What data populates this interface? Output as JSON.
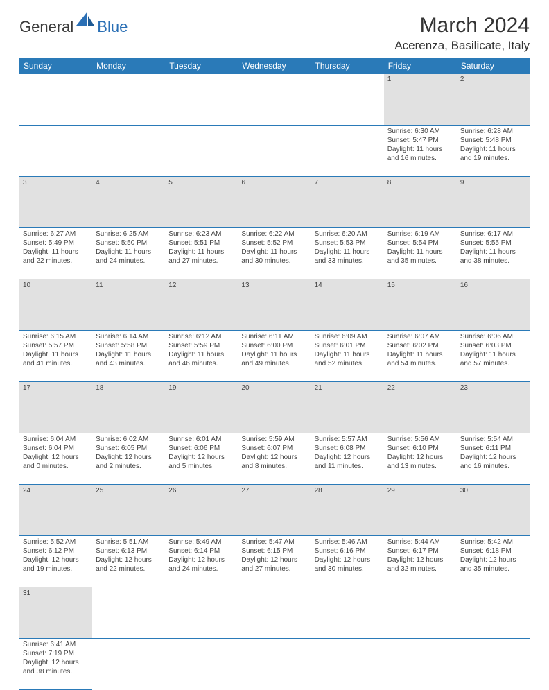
{
  "logo": {
    "general": "General",
    "blue": "Blue"
  },
  "title": "March 2024",
  "location": "Acerenza, Basilicate, Italy",
  "colors": {
    "header_bg": "#2a7ab8",
    "header_fg": "#ffffff",
    "daynum_bg": "#e1e1e1",
    "border": "#2a7ab8",
    "logo_blue": "#2a6fb5",
    "text": "#333333"
  },
  "weekdays": [
    "Sunday",
    "Monday",
    "Tuesday",
    "Wednesday",
    "Thursday",
    "Friday",
    "Saturday"
  ],
  "weeks": [
    [
      null,
      null,
      null,
      null,
      null,
      {
        "n": "1",
        "sr": "Sunrise: 6:30 AM",
        "ss": "Sunset: 5:47 PM",
        "d1": "Daylight: 11 hours",
        "d2": "and 16 minutes."
      },
      {
        "n": "2",
        "sr": "Sunrise: 6:28 AM",
        "ss": "Sunset: 5:48 PM",
        "d1": "Daylight: 11 hours",
        "d2": "and 19 minutes."
      }
    ],
    [
      {
        "n": "3",
        "sr": "Sunrise: 6:27 AM",
        "ss": "Sunset: 5:49 PM",
        "d1": "Daylight: 11 hours",
        "d2": "and 22 minutes."
      },
      {
        "n": "4",
        "sr": "Sunrise: 6:25 AM",
        "ss": "Sunset: 5:50 PM",
        "d1": "Daylight: 11 hours",
        "d2": "and 24 minutes."
      },
      {
        "n": "5",
        "sr": "Sunrise: 6:23 AM",
        "ss": "Sunset: 5:51 PM",
        "d1": "Daylight: 11 hours",
        "d2": "and 27 minutes."
      },
      {
        "n": "6",
        "sr": "Sunrise: 6:22 AM",
        "ss": "Sunset: 5:52 PM",
        "d1": "Daylight: 11 hours",
        "d2": "and 30 minutes."
      },
      {
        "n": "7",
        "sr": "Sunrise: 6:20 AM",
        "ss": "Sunset: 5:53 PM",
        "d1": "Daylight: 11 hours",
        "d2": "and 33 minutes."
      },
      {
        "n": "8",
        "sr": "Sunrise: 6:19 AM",
        "ss": "Sunset: 5:54 PM",
        "d1": "Daylight: 11 hours",
        "d2": "and 35 minutes."
      },
      {
        "n": "9",
        "sr": "Sunrise: 6:17 AM",
        "ss": "Sunset: 5:55 PM",
        "d1": "Daylight: 11 hours",
        "d2": "and 38 minutes."
      }
    ],
    [
      {
        "n": "10",
        "sr": "Sunrise: 6:15 AM",
        "ss": "Sunset: 5:57 PM",
        "d1": "Daylight: 11 hours",
        "d2": "and 41 minutes."
      },
      {
        "n": "11",
        "sr": "Sunrise: 6:14 AM",
        "ss": "Sunset: 5:58 PM",
        "d1": "Daylight: 11 hours",
        "d2": "and 43 minutes."
      },
      {
        "n": "12",
        "sr": "Sunrise: 6:12 AM",
        "ss": "Sunset: 5:59 PM",
        "d1": "Daylight: 11 hours",
        "d2": "and 46 minutes."
      },
      {
        "n": "13",
        "sr": "Sunrise: 6:11 AM",
        "ss": "Sunset: 6:00 PM",
        "d1": "Daylight: 11 hours",
        "d2": "and 49 minutes."
      },
      {
        "n": "14",
        "sr": "Sunrise: 6:09 AM",
        "ss": "Sunset: 6:01 PM",
        "d1": "Daylight: 11 hours",
        "d2": "and 52 minutes."
      },
      {
        "n": "15",
        "sr": "Sunrise: 6:07 AM",
        "ss": "Sunset: 6:02 PM",
        "d1": "Daylight: 11 hours",
        "d2": "and 54 minutes."
      },
      {
        "n": "16",
        "sr": "Sunrise: 6:06 AM",
        "ss": "Sunset: 6:03 PM",
        "d1": "Daylight: 11 hours",
        "d2": "and 57 minutes."
      }
    ],
    [
      {
        "n": "17",
        "sr": "Sunrise: 6:04 AM",
        "ss": "Sunset: 6:04 PM",
        "d1": "Daylight: 12 hours",
        "d2": "and 0 minutes."
      },
      {
        "n": "18",
        "sr": "Sunrise: 6:02 AM",
        "ss": "Sunset: 6:05 PM",
        "d1": "Daylight: 12 hours",
        "d2": "and 2 minutes."
      },
      {
        "n": "19",
        "sr": "Sunrise: 6:01 AM",
        "ss": "Sunset: 6:06 PM",
        "d1": "Daylight: 12 hours",
        "d2": "and 5 minutes."
      },
      {
        "n": "20",
        "sr": "Sunrise: 5:59 AM",
        "ss": "Sunset: 6:07 PM",
        "d1": "Daylight: 12 hours",
        "d2": "and 8 minutes."
      },
      {
        "n": "21",
        "sr": "Sunrise: 5:57 AM",
        "ss": "Sunset: 6:08 PM",
        "d1": "Daylight: 12 hours",
        "d2": "and 11 minutes."
      },
      {
        "n": "22",
        "sr": "Sunrise: 5:56 AM",
        "ss": "Sunset: 6:10 PM",
        "d1": "Daylight: 12 hours",
        "d2": "and 13 minutes."
      },
      {
        "n": "23",
        "sr": "Sunrise: 5:54 AM",
        "ss": "Sunset: 6:11 PM",
        "d1": "Daylight: 12 hours",
        "d2": "and 16 minutes."
      }
    ],
    [
      {
        "n": "24",
        "sr": "Sunrise: 5:52 AM",
        "ss": "Sunset: 6:12 PM",
        "d1": "Daylight: 12 hours",
        "d2": "and 19 minutes."
      },
      {
        "n": "25",
        "sr": "Sunrise: 5:51 AM",
        "ss": "Sunset: 6:13 PM",
        "d1": "Daylight: 12 hours",
        "d2": "and 22 minutes."
      },
      {
        "n": "26",
        "sr": "Sunrise: 5:49 AM",
        "ss": "Sunset: 6:14 PM",
        "d1": "Daylight: 12 hours",
        "d2": "and 24 minutes."
      },
      {
        "n": "27",
        "sr": "Sunrise: 5:47 AM",
        "ss": "Sunset: 6:15 PM",
        "d1": "Daylight: 12 hours",
        "d2": "and 27 minutes."
      },
      {
        "n": "28",
        "sr": "Sunrise: 5:46 AM",
        "ss": "Sunset: 6:16 PM",
        "d1": "Daylight: 12 hours",
        "d2": "and 30 minutes."
      },
      {
        "n": "29",
        "sr": "Sunrise: 5:44 AM",
        "ss": "Sunset: 6:17 PM",
        "d1": "Daylight: 12 hours",
        "d2": "and 32 minutes."
      },
      {
        "n": "30",
        "sr": "Sunrise: 5:42 AM",
        "ss": "Sunset: 6:18 PM",
        "d1": "Daylight: 12 hours",
        "d2": "and 35 minutes."
      }
    ],
    [
      {
        "n": "31",
        "sr": "Sunrise: 6:41 AM",
        "ss": "Sunset: 7:19 PM",
        "d1": "Daylight: 12 hours",
        "d2": "and 38 minutes."
      },
      null,
      null,
      null,
      null,
      null,
      null
    ]
  ]
}
